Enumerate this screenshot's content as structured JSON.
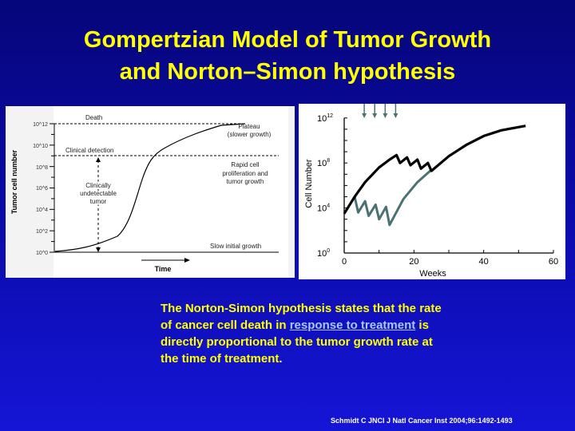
{
  "title": {
    "line1": "Gompertzian Model of Tumor Growth",
    "line2": "and Norton–Simon hypothesis"
  },
  "left_figure": {
    "ylabel": "Tumor cell number",
    "xlabel": "Time",
    "yticks": [
      "10^12",
      "10^10",
      "10^8",
      "10^6",
      "10^4",
      "10^2",
      "10^0"
    ],
    "annotations": {
      "death": "Death",
      "clinical_detection": "Clinical detection",
      "plateau": [
        "Plateau",
        "(slower growth)"
      ],
      "rapid": [
        "Rapid cell",
        "proliferation and",
        "tumor growth"
      ],
      "undetectable": [
        "Clinically",
        "undetectable",
        "tumor"
      ],
      "slow": "Slow initial growth"
    }
  },
  "right_figure": {
    "ylabel": "Cell Number",
    "xlabel": "Weeks",
    "yticks": [
      {
        "exp": "12",
        "v": 12
      },
      {
        "exp": "8",
        "v": 8
      },
      {
        "exp": "4",
        "v": 4
      },
      {
        "exp": "0",
        "v": 0
      }
    ],
    "xticks": [
      0,
      20,
      40,
      60
    ],
    "treatment_weeks": [
      3,
      6,
      9,
      12
    ],
    "colors": {
      "untreated": "#000000",
      "treated": "#4a7272",
      "arrow": "#4a7272"
    },
    "series_black_log10": [
      [
        0,
        3.5
      ],
      [
        3,
        5
      ],
      [
        6,
        6.3
      ],
      [
        10,
        7.6
      ],
      [
        13,
        8.3
      ],
      [
        15,
        8.7
      ],
      [
        16,
        8.0
      ],
      [
        18,
        8.5
      ],
      [
        19,
        7.8
      ],
      [
        21,
        8.3
      ],
      [
        22,
        7.5
      ],
      [
        24,
        8.0
      ],
      [
        25,
        7.3
      ],
      [
        30,
        8.6
      ],
      [
        35,
        9.6
      ],
      [
        40,
        10.4
      ],
      [
        45,
        10.9
      ],
      [
        52,
        11.3
      ]
    ],
    "series_gray_log10": [
      [
        3,
        5
      ],
      [
        4,
        3.6
      ],
      [
        6,
        4.6
      ],
      [
        7,
        3.3
      ],
      [
        9,
        4.3
      ],
      [
        10,
        3.0
      ],
      [
        12,
        4.1
      ],
      [
        13,
        2.5
      ],
      [
        17,
        4.8
      ],
      [
        21,
        6.3
      ],
      [
        25,
        7.4
      ]
    ]
  },
  "body": {
    "before": "The Norton-Simon hypothesis states that the rate of cancer cell death in ",
    "link": "response to treatment",
    "after": " is directly proportional to the tumor growth rate at the time of treatment."
  },
  "citation": "Schmidt C JNCI J Natl Cancer Inst 2004;96:1492-1493"
}
